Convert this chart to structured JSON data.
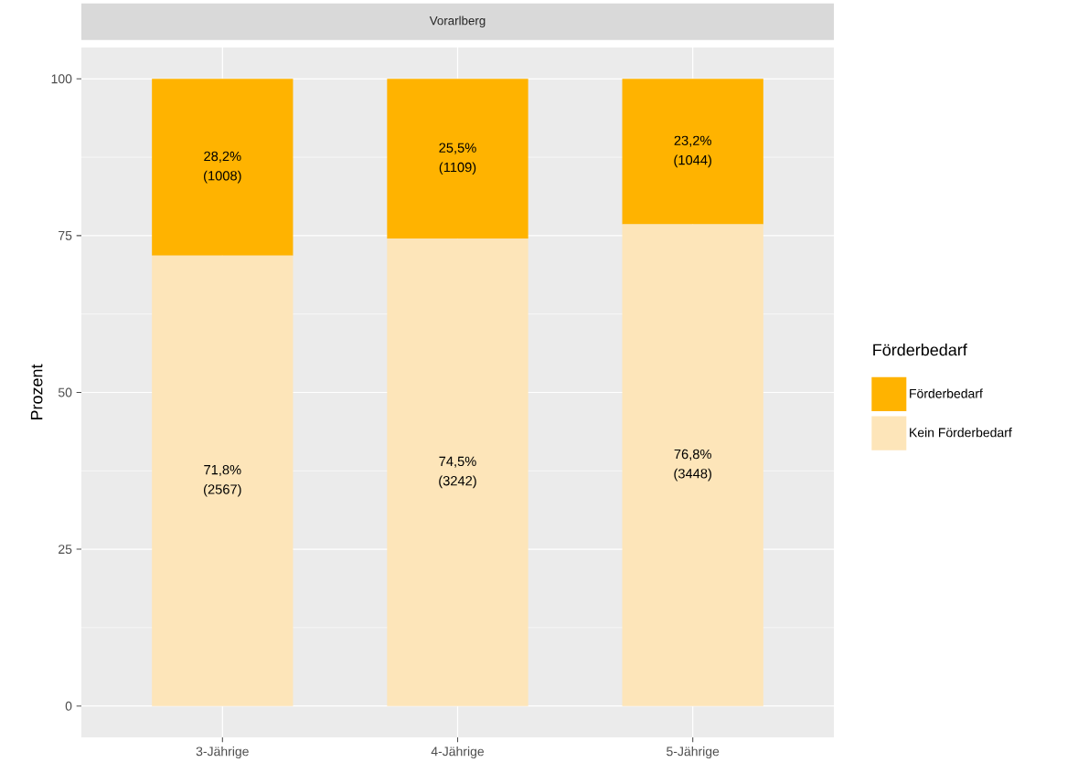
{
  "chart_data": {
    "type": "bar",
    "title": "Vorarlberg",
    "ylabel": "Prozent",
    "legend_title": "Förderbedarf",
    "categories": [
      "3-Jährige",
      "4-Jährige",
      "5-Jährige"
    ],
    "stacked": true,
    "series": [
      {
        "name": "Kein Förderbedarf",
        "color": "#FDE5B9",
        "values": [
          71.8,
          74.5,
          76.8
        ],
        "value_labels": [
          "71,8% (2567)",
          "74,5% (3242)",
          "76,8% (3448)"
        ]
      },
      {
        "name": "Förderbedarf",
        "color": "#FFB300",
        "values": [
          28.2,
          25.5,
          23.2
        ],
        "value_labels": [
          "28,2% (1008)",
          "25,5% (1109)",
          "23,2% (1044)"
        ]
      }
    ],
    "ylim": [
      -5,
      105
    ],
    "yticks": [
      0,
      25,
      50,
      75,
      100
    ],
    "grid": true,
    "legend": "right"
  }
}
